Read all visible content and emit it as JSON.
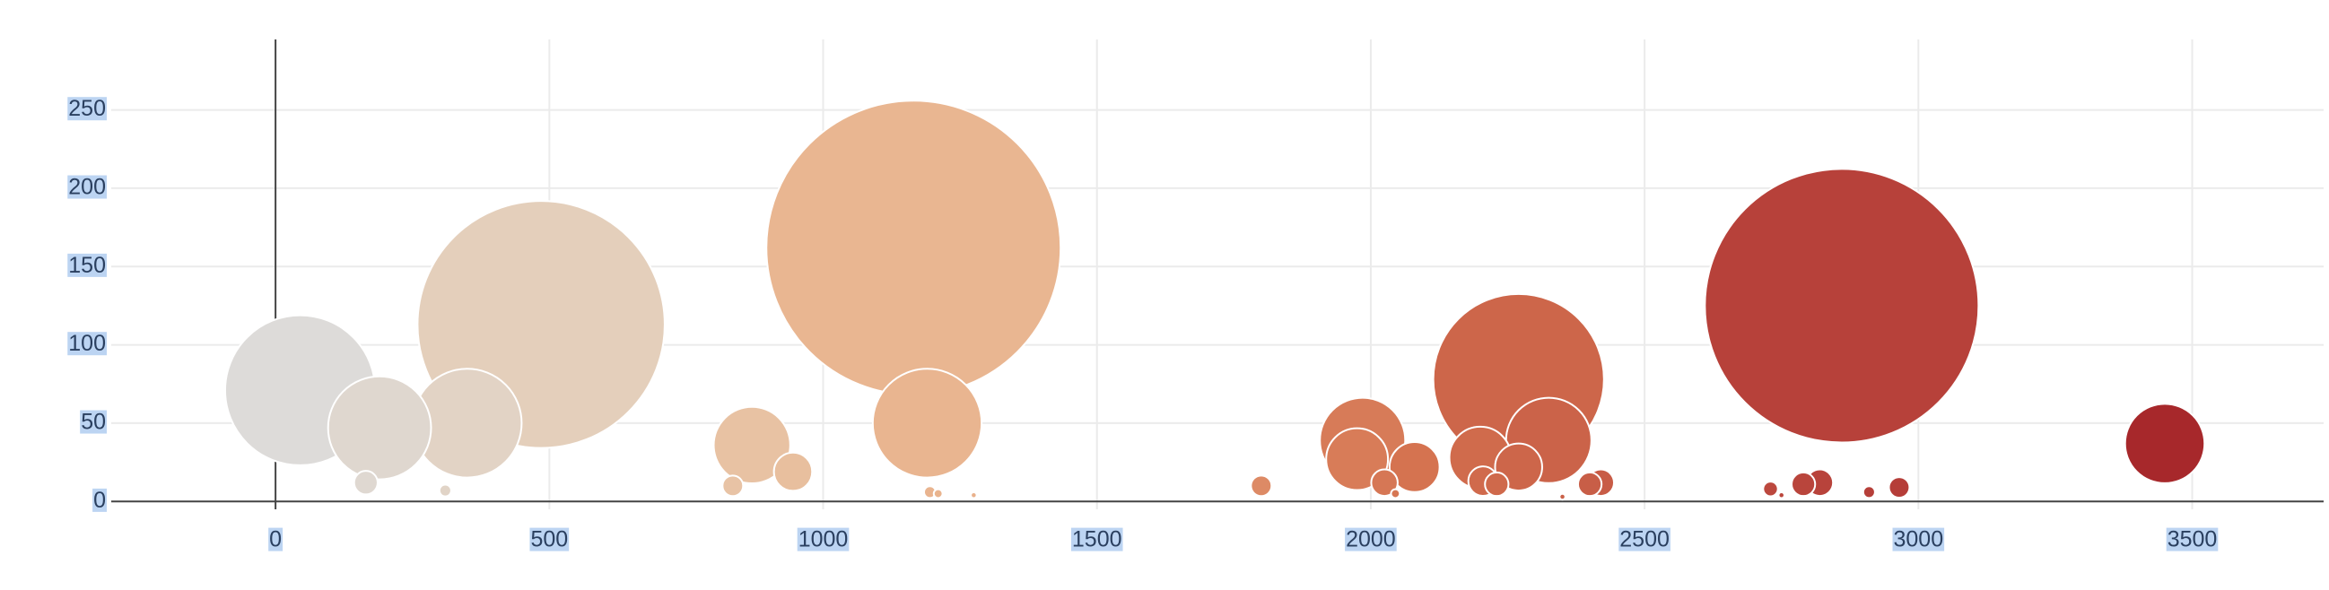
{
  "chart_data": {
    "type": "scatter",
    "variant": "bubble",
    "title": "",
    "xlabel": "",
    "ylabel": "",
    "xlim": [
      -300,
      3740
    ],
    "ylim": [
      -5,
      295
    ],
    "x_ticks": [
      0,
      500,
      1000,
      1500,
      2000,
      2500,
      3000,
      3500
    ],
    "y_ticks": [
      0,
      50,
      100,
      150,
      200,
      250
    ],
    "x_tick_labels": [
      "0",
      "500",
      "1000",
      "1500",
      "2000",
      "2500",
      "3000",
      "3500"
    ],
    "y_tick_labels": [
      "0",
      "50",
      "100",
      "150",
      "200",
      "250"
    ],
    "grid": true,
    "legend": "none",
    "colorscale": [
      "#dcdcdc",
      "#e8c9ad",
      "#e9ac83",
      "#d4714f",
      "#b9443c",
      "#a6262a"
    ],
    "colorscale_range": [
      0,
      3500
    ],
    "size_unit": "relative (largest bubble = 1.0)",
    "points": [
      {
        "x": 45,
        "y": 71,
        "size": 0.51
      },
      {
        "x": 190,
        "y": 47,
        "size": 0.35
      },
      {
        "x": 165,
        "y": 12,
        "size": 0.08
      },
      {
        "x": 350,
        "y": 50,
        "size": 0.37
      },
      {
        "x": 310,
        "y": 7,
        "size": 0.04
      },
      {
        "x": 485,
        "y": 113,
        "size": 0.84
      },
      {
        "x": 870,
        "y": 36,
        "size": 0.26
      },
      {
        "x": 945,
        "y": 19,
        "size": 0.13
      },
      {
        "x": 835,
        "y": 10,
        "size": 0.07
      },
      {
        "x": 1165,
        "y": 162,
        "size": 1.0
      },
      {
        "x": 1190,
        "y": 50,
        "size": 0.37
      },
      {
        "x": 1195,
        "y": 6,
        "size": 0.04
      },
      {
        "x": 1210,
        "y": 5,
        "size": 0.03
      },
      {
        "x": 1275,
        "y": 4,
        "size": 0.02
      },
      {
        "x": 1800,
        "y": 10,
        "size": 0.07
      },
      {
        "x": 1985,
        "y": 39,
        "size": 0.29
      },
      {
        "x": 1975,
        "y": 27,
        "size": 0.21
      },
      {
        "x": 2025,
        "y": 12,
        "size": 0.09
      },
      {
        "x": 2080,
        "y": 22,
        "size": 0.17
      },
      {
        "x": 2045,
        "y": 5,
        "size": 0.03
      },
      {
        "x": 2200,
        "y": 28,
        "size": 0.21
      },
      {
        "x": 2205,
        "y": 13,
        "size": 0.1
      },
      {
        "x": 2230,
        "y": 11,
        "size": 0.08
      },
      {
        "x": 2270,
        "y": 78,
        "size": 0.58
      },
      {
        "x": 2270,
        "y": 22,
        "size": 0.16
      },
      {
        "x": 2325,
        "y": 39,
        "size": 0.29
      },
      {
        "x": 2400,
        "y": 11,
        "size": 0.08
      },
      {
        "x": 2420,
        "y": 12,
        "size": 0.09
      },
      {
        "x": 2350,
        "y": 3,
        "size": 0.02
      },
      {
        "x": 2730,
        "y": 8,
        "size": 0.05
      },
      {
        "x": 2750,
        "y": 4,
        "size": 0.02
      },
      {
        "x": 2790,
        "y": 11,
        "size": 0.08
      },
      {
        "x": 2820,
        "y": 12,
        "size": 0.09
      },
      {
        "x": 2860,
        "y": 125,
        "size": 0.93
      },
      {
        "x": 2910,
        "y": 6,
        "size": 0.04
      },
      {
        "x": 2965,
        "y": 9,
        "size": 0.07
      },
      {
        "x": 3450,
        "y": 37,
        "size": 0.27
      }
    ]
  }
}
